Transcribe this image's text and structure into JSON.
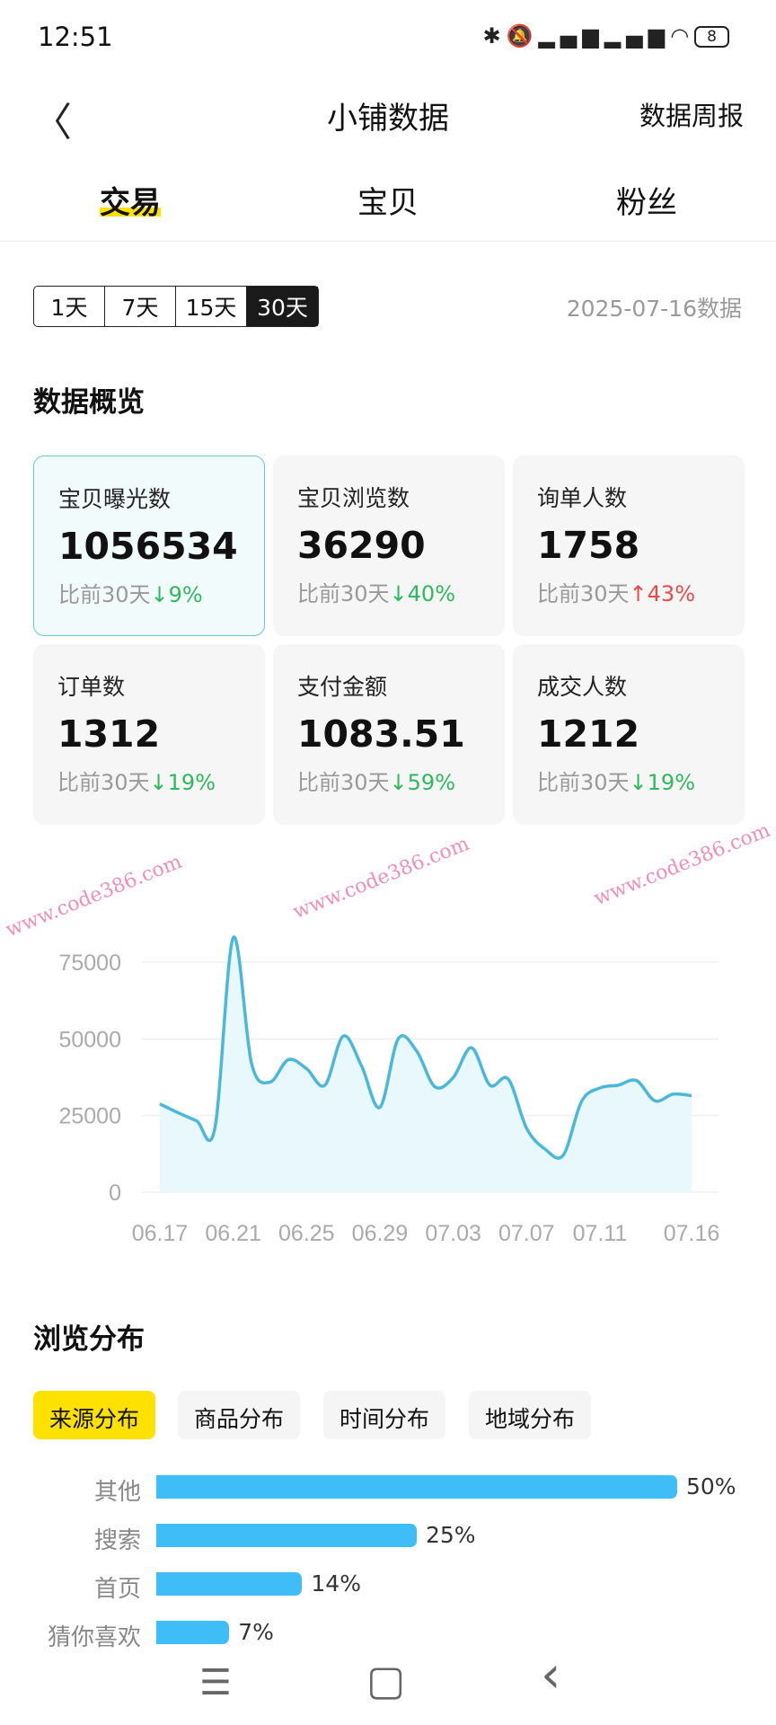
{
  "status": {
    "time": "12:51",
    "battery": "8"
  },
  "header": {
    "title": "小铺数据",
    "right": "数据周报"
  },
  "tabs": [
    {
      "label": "交易",
      "active": true
    },
    {
      "label": "宝贝"
    },
    {
      "label": "粉丝"
    }
  ],
  "range": {
    "options": [
      "1天",
      "7天",
      "15天",
      "30天"
    ],
    "selected": "30天",
    "date": "2025-07-16数据"
  },
  "overview": {
    "title": "数据概览",
    "cards": [
      {
        "label": "宝贝曝光数",
        "value": "1056534",
        "compare": "比前30天",
        "dir": "down",
        "change": "9%"
      },
      {
        "label": "宝贝浏览数",
        "value": "36290",
        "compare": "比前30天",
        "dir": "down",
        "change": "40%"
      },
      {
        "label": "询单人数",
        "value": "1758",
        "compare": "比前30天",
        "dir": "up",
        "change": "43%"
      },
      {
        "label": "订单数",
        "value": "1312",
        "compare": "比前30天",
        "dir": "down",
        "change": "19%"
      },
      {
        "label": "支付金额",
        "value": "1083.51",
        "compare": "比前30天",
        "dir": "down",
        "change": "59%"
      },
      {
        "label": "成交人数",
        "value": "1212",
        "compare": "比前30天",
        "dir": "down",
        "change": "19%"
      }
    ]
  },
  "watermark": "www.code386.com",
  "chart_data": {
    "type": "area",
    "color": "#4bb8d8",
    "ylim": [
      0,
      85000
    ],
    "yticks": [
      0,
      25000,
      50000,
      75000
    ],
    "grid": true,
    "x": [
      "06.17",
      "06.18",
      "06.19",
      "06.20",
      "06.21",
      "06.22",
      "06.23",
      "06.24",
      "06.25",
      "06.26",
      "06.27",
      "06.28",
      "06.29",
      "06.30",
      "07.01",
      "07.02",
      "07.03",
      "07.04",
      "07.05",
      "07.06",
      "07.07",
      "07.08",
      "07.09",
      "07.10",
      "07.11",
      "07.12",
      "07.13",
      "07.14",
      "07.15",
      "07.16"
    ],
    "xtick_labels": [
      "06.17",
      "06.21",
      "06.25",
      "06.29",
      "07.03",
      "07.07",
      "07.11",
      "07.16"
    ],
    "values": [
      28800,
      25900,
      23300,
      20900,
      83000,
      42000,
      35900,
      43200,
      40300,
      34900,
      50900,
      41200,
      27700,
      50000,
      46100,
      34400,
      37400,
      47100,
      34900,
      36900,
      20900,
      14100,
      12100,
      29600,
      34000,
      34900,
      36400,
      29800,
      32000,
      31500
    ]
  },
  "browse": {
    "title": "浏览分布",
    "pills": [
      "来源分布",
      "商品分布",
      "时间分布",
      "地域分布"
    ],
    "active": "来源分布",
    "bars": [
      {
        "label": "其他",
        "pct": 50,
        "text": "50%"
      },
      {
        "label": "搜索",
        "pct": 25,
        "text": "25%"
      },
      {
        "label": "首页",
        "pct": 14,
        "text": "14%"
      },
      {
        "label": "猜你喜欢",
        "pct": 7,
        "text": "7%"
      }
    ]
  },
  "navbar": {
    "menu": "☰",
    "home": "▢",
    "back": "‹"
  }
}
